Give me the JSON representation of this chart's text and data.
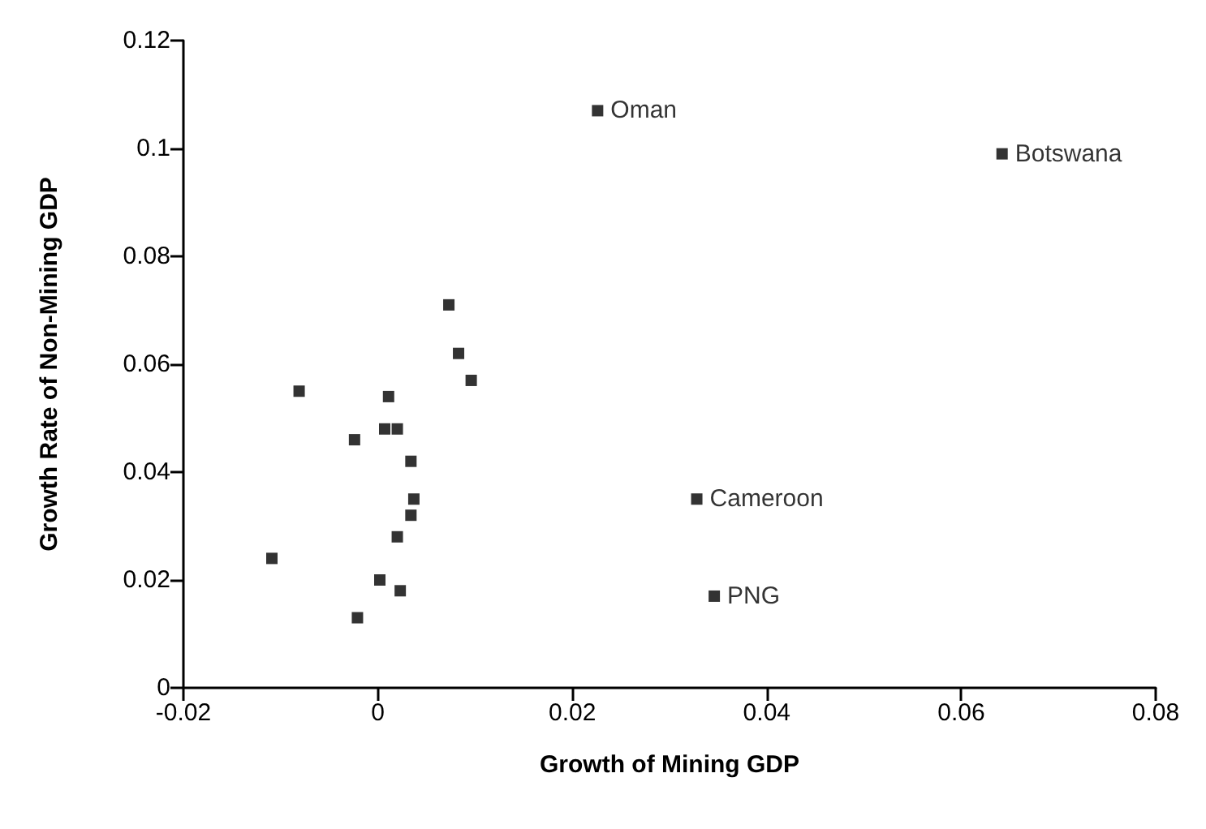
{
  "chart_data": {
    "type": "scatter",
    "xlabel": "Growth of Mining GDP",
    "ylabel": "Growth Rate of Non-Mining GDP",
    "xlim": [
      -0.02,
      0.08
    ],
    "xticks": [
      -0.02,
      0,
      0.02,
      0.04,
      0.06,
      0.08
    ],
    "ylim": [
      0,
      0.12
    ],
    "yticks": [
      0,
      0.02,
      0.04,
      0.06,
      0.08,
      0.1,
      0.12
    ],
    "marker": "square",
    "grid": false,
    "series": [
      {
        "color": "#000000",
        "x": [
          0.0226,
          0.0642,
          0.0328,
          0.0346,
          0.0073,
          0.0083,
          0.0096,
          -0.0081,
          0.0011,
          0.002,
          0.0007,
          -0.0024,
          0.0034,
          0.0037,
          0.0034,
          0.002,
          -0.0109,
          0.0002,
          0.0023,
          -0.0021
        ],
        "values": [
          0.107,
          0.099,
          0.035,
          0.017,
          0.071,
          0.062,
          0.057,
          0.055,
          0.054,
          0.048,
          0.048,
          0.046,
          0.042,
          0.035,
          0.032,
          0.028,
          0.024,
          0.02,
          0.018,
          0.013
        ]
      }
    ],
    "annotations": [
      {
        "text": "Oman",
        "x": 0.0226,
        "y": 0.107
      },
      {
        "text": "Botswana",
        "x": 0.0642,
        "y": 0.099
      },
      {
        "text": "Cameroon",
        "x": 0.0328,
        "y": 0.035
      },
      {
        "text": "PNG",
        "x": 0.0346,
        "y": 0.017
      }
    ]
  }
}
